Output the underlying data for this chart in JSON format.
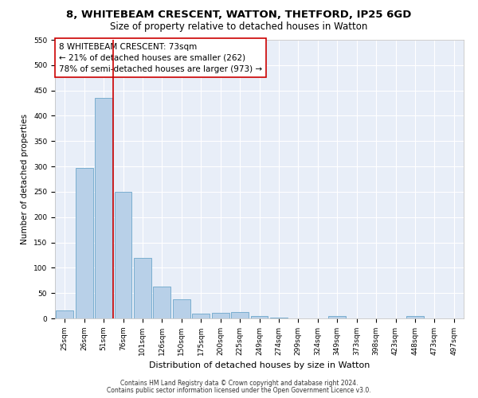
{
  "title1": "8, WHITEBEAM CRESCENT, WATTON, THETFORD, IP25 6GD",
  "title2": "Size of property relative to detached houses in Watton",
  "xlabel": "Distribution of detached houses by size in Watton",
  "ylabel": "Number of detached properties",
  "categories": [
    "25sqm",
    "26sqm",
    "51sqm",
    "76sqm",
    "101sqm",
    "126sqm",
    "150sqm",
    "175sqm",
    "200sqm",
    "225sqm",
    "249sqm",
    "274sqm",
    "299sqm",
    "324sqm",
    "349sqm",
    "373sqm",
    "398sqm",
    "423sqm",
    "448sqm",
    "473sqm",
    "497sqm"
  ],
  "values": [
    15,
    297,
    435,
    250,
    120,
    63,
    37,
    9,
    11,
    13,
    5,
    2,
    0,
    0,
    4,
    0,
    0,
    0,
    5,
    0,
    0
  ],
  "bar_color": "#b8d0e8",
  "bar_edge_color": "#7aaed0",
  "vline_x_index": 2,
  "vline_color": "#cc0000",
  "annotation_text": "8 WHITEBEAM CRESCENT: 73sqm\n← 21% of detached houses are smaller (262)\n78% of semi-detached houses are larger (973) →",
  "annotation_box_color": "#ffffff",
  "annotation_box_edge_color": "#cc0000",
  "ylim": [
    0,
    550
  ],
  "yticks": [
    0,
    50,
    100,
    150,
    200,
    250,
    300,
    350,
    400,
    450,
    500,
    550
  ],
  "footer1": "Contains HM Land Registry data © Crown copyright and database right 2024.",
  "footer2": "Contains public sector information licensed under the Open Government Licence v3.0.",
  "bg_color": "#e8eef8",
  "grid_color": "#ffffff",
  "title1_fontsize": 9.5,
  "title2_fontsize": 8.5,
  "xlabel_fontsize": 8,
  "ylabel_fontsize": 7.5,
  "tick_fontsize": 6.5,
  "annotation_fontsize": 7.5,
  "footer_fontsize": 5.5
}
